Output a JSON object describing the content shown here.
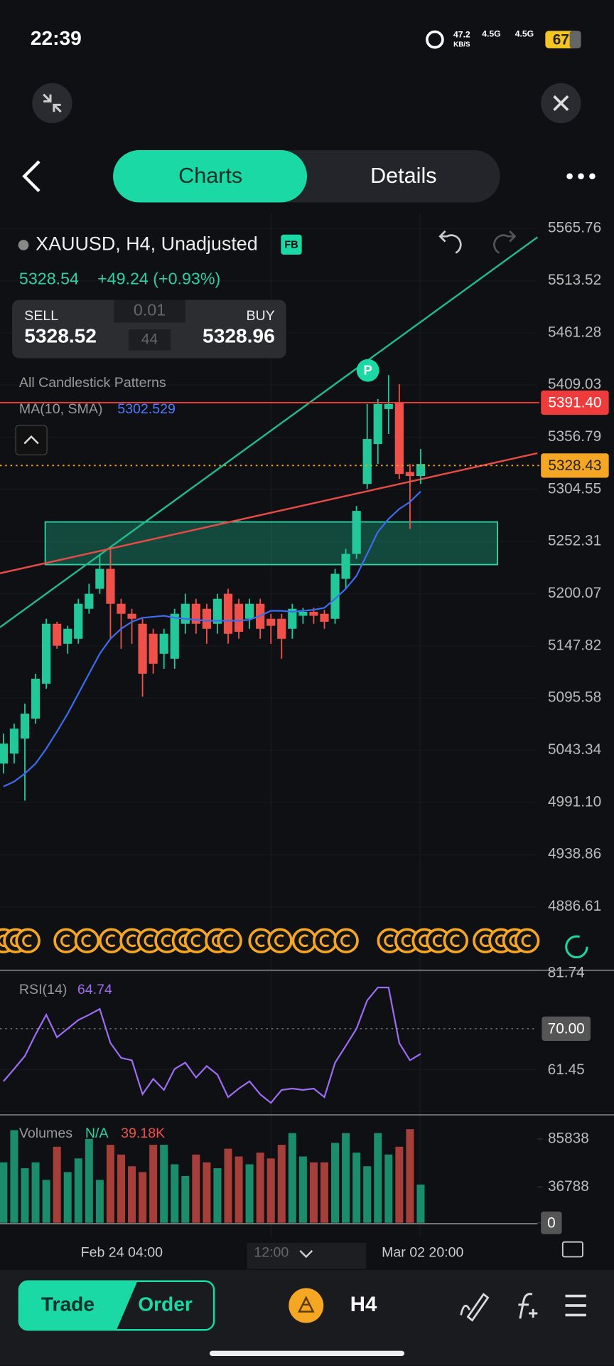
{
  "status_bar": {
    "time": "22:39",
    "speed": "47.2",
    "speed_unit": "KB/S",
    "network": [
      "4.5G",
      "4.5G"
    ],
    "battery": "67"
  },
  "tabs": [
    "Charts",
    "Details"
  ],
  "symbol": {
    "name": "XAUUSD, H4, Unadjusted",
    "badge": "FB",
    "price": "5328.54",
    "change": "+49.24 (+0.93%)"
  },
  "quote": {
    "sell_label": "SELL",
    "sell": "5328.52",
    "lot": "0.01",
    "spread": "44",
    "buy_label": "BUY",
    "buy": "5328.96"
  },
  "indicators": {
    "patterns": "All Candlestick Patterns",
    "ma_label": "MA(10, SMA)",
    "ma_value": "5302.529"
  },
  "chart_data": [
    {
      "type": "candlestick",
      "ylim": [
        4835.2,
        5580.6
      ],
      "yticks": [
        5565.76,
        5513.52,
        5461.28,
        5409.03,
        5356.79,
        5304.55,
        5252.31,
        5200.07,
        5147.82,
        5095.58,
        5043.34,
        {
          "value": 4991.1,
          "label": "4991.10"
        },
        4938.86,
        4886.61
      ],
      "up_color": "#22c79a",
      "down_color": "#f0504a",
      "open": [
        5030,
        5040,
        5055,
        5075,
        5110,
        5170,
        5150,
        5155,
        5185,
        5205,
        5225,
        5190,
        5180,
        5170,
        5160,
        5140,
        5135,
        5170,
        5190,
        5185,
        5170,
        5200,
        5190,
        5175,
        5190,
        5175,
        5175,
        5165,
        5178,
        5182,
        5180,
        5175,
        5215,
        5240,
        5310,
        5350,
        5385,
        5392,
        5322,
        5318
      ],
      "high": [
        5060,
        5070,
        5090,
        5120,
        5175,
        5172,
        5168,
        5195,
        5210,
        5240,
        5246,
        5195,
        5185,
        5175,
        5165,
        5165,
        5185,
        5200,
        5195,
        5190,
        5200,
        5205,
        5195,
        5195,
        5195,
        5180,
        5180,
        5190,
        5186,
        5186,
        5184,
        5225,
        5245,
        5288,
        5390,
        5395,
        5419,
        5410,
        5330,
        5345
      ],
      "low": [
        5020,
        5030,
        4993,
        5070,
        5105,
        5145,
        5140,
        5150,
        5180,
        5200,
        5155,
        5145,
        5150,
        5097,
        5120,
        5125,
        5125,
        5160,
        5160,
        5150,
        5160,
        5150,
        5155,
        5165,
        5155,
        5150,
        5135,
        5155,
        5170,
        5170,
        5165,
        5170,
        5205,
        5235,
        5305,
        5330,
        5360,
        5315,
        5265,
        5310
      ],
      "close": [
        5050,
        5065,
        5080,
        5115,
        5170,
        5148,
        5165,
        5190,
        5200,
        5225,
        5190,
        5180,
        5175,
        5120,
        5130,
        5160,
        5180,
        5190,
        5170,
        5165,
        5195,
        5160,
        5162,
        5190,
        5165,
        5168,
        5155,
        5185,
        5182,
        5178,
        5172,
        5220,
        5240,
        5283,
        5355,
        5390,
        5390,
        5320,
        5318,
        5330
      ],
      "ma_color": "#3d6cf0",
      "ma": [
        5007,
        5012,
        5020,
        5030,
        5045,
        5062,
        5080,
        5100,
        5120,
        5140,
        5155,
        5165,
        5172,
        5176,
        5177,
        5178,
        5176,
        5175,
        5174,
        5173,
        5173,
        5173,
        5173,
        5174,
        5178,
        5183,
        5183,
        5182,
        5183,
        5184,
        5186,
        5195,
        5205,
        5218,
        5240,
        5262,
        5275,
        5285,
        5292,
        5302.53
      ],
      "price_lines": [
        {
          "value": 5391.4,
          "label": "5391.40",
          "color": "#ee3b3b",
          "style": "solid"
        },
        {
          "value": 5328.43,
          "label": "5328.43",
          "color": "#f5a623",
          "style": "dotted"
        }
      ],
      "marker": "P"
    },
    {
      "type": "line",
      "title": "RSI(14)",
      "value_label": "64.74",
      "color": "#9d6cf2",
      "ylim": [
        52,
        82
      ],
      "yticks": [
        81.74,
        {
          "value": 70,
          "label": "70.00"
        },
        61.45
      ],
      "values": [
        59,
        61.6,
        64.3,
        68.8,
        72.9,
        68.2,
        70,
        71.8,
        72.9,
        74.1,
        67,
        63.9,
        63.4,
        56.3,
        59.5,
        57.2,
        61.6,
        62.9,
        59.8,
        62.2,
        60.4,
        55.7,
        57.5,
        59,
        56.3,
        54.5,
        57.2,
        57.5,
        57.2,
        57.5,
        55.7,
        62.9,
        66.4,
        70,
        75.9,
        78.6,
        78.6,
        67,
        63.4,
        64.74
      ]
    },
    {
      "type": "bar",
      "title": "Volumes",
      "subtitle": "N/A",
      "value_label": "39.18K",
      "up_color": "#1b8d6c",
      "down_color": "#a63f3a",
      "ylim": [
        0,
        108000
      ],
      "yticks": [
        85838,
        36788,
        0
      ],
      "values": [
        62000,
        95000,
        56000,
        62000,
        44000,
        78000,
        52000,
        66000,
        86000,
        44000,
        80000,
        70000,
        58000,
        52000,
        80000,
        80000,
        60000,
        48000,
        70000,
        62000,
        56000,
        76000,
        68000,
        60000,
        72000,
        66000,
        80000,
        92000,
        68000,
        62000,
        62000,
        82000,
        92000,
        72000,
        58000,
        92000,
        70000,
        78000,
        96000,
        39180
      ]
    }
  ],
  "x_axis": {
    "labels": [
      "Feb 24 04:00",
      "12:00",
      "Mar 02 20:00"
    ]
  },
  "bottom_bar": {
    "trade": "Trade",
    "order": "Order",
    "timeframe": "H4"
  }
}
